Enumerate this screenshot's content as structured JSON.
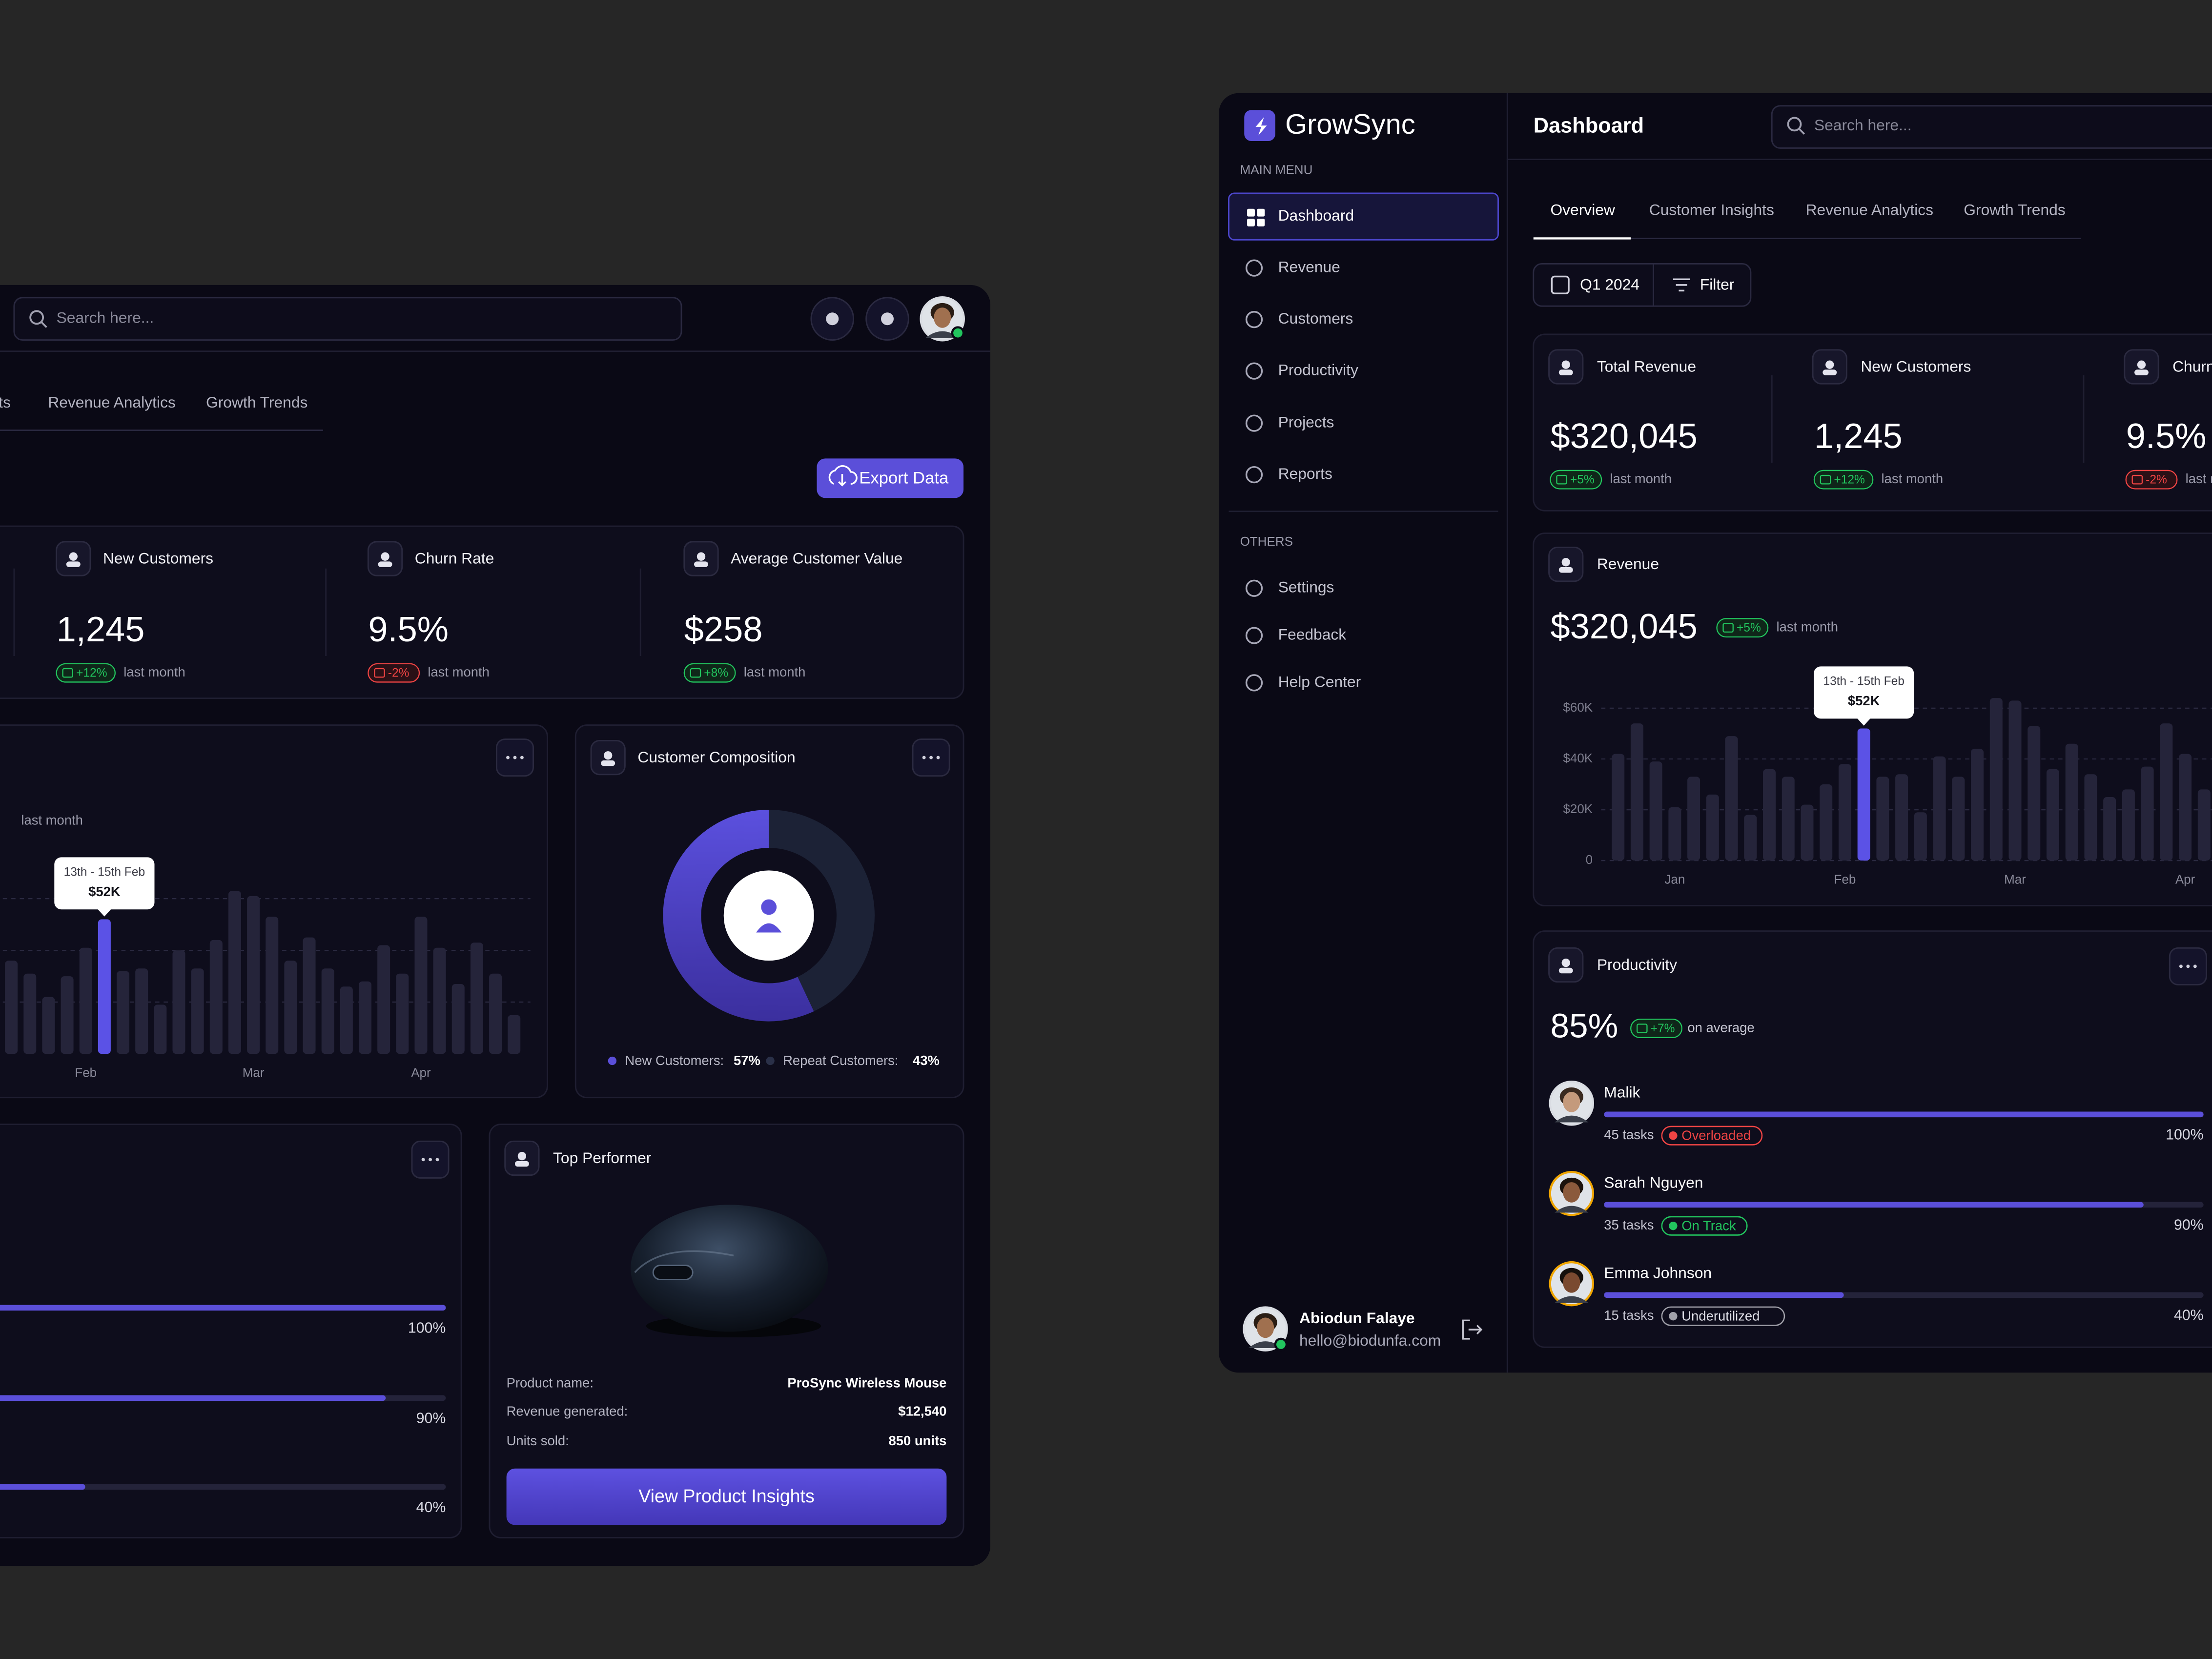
{
  "left_panel": {
    "search_placeholder": "Search here...",
    "tabs": [
      "ts",
      "Revenue Analytics",
      "Growth Trends"
    ],
    "export_button": "Export Data",
    "stats": [
      {
        "label": "New Customers",
        "value": "1,245",
        "change": "+12%",
        "period": "last month"
      },
      {
        "label": "Churn Rate",
        "value": "9.5%",
        "change": "-2%",
        "period": "last month"
      },
      {
        "label": "Average Customer Value",
        "value": "$258",
        "change": "+8%",
        "period": "last month"
      }
    ],
    "revenue_chart": {
      "type": "bar",
      "period": "last month",
      "tooltip": {
        "date": "13th - 15th Feb",
        "value": "$52K"
      },
      "categories": [
        null,
        null,
        null,
        null,
        "Feb",
        null,
        null,
        null,
        null,
        null,
        null,
        null,
        null,
        "Mar",
        null,
        null,
        null,
        null,
        null,
        null,
        null,
        null,
        "Apr",
        null,
        null,
        null,
        null,
        null
      ],
      "values": [
        36000,
        31000,
        22000,
        30000,
        41000,
        52000,
        32000,
        33000,
        19000,
        40000,
        33000,
        44000,
        63000,
        61000,
        53000,
        36000,
        45000,
        33000,
        26000,
        28000,
        42000,
        31000,
        53000,
        41000,
        27000,
        43000,
        31000,
        15000
      ],
      "highlight_index": 5,
      "ylim": [
        0,
        70000
      ],
      "yticks": [
        20000,
        40000,
        60000
      ],
      "grid": true,
      "color": "#25243a",
      "highlight_color": "#5b52e6"
    },
    "customer_composition": {
      "type": "pie",
      "title": "Customer Composition",
      "categories": [
        "New Customers:",
        "Repeat Customers:"
      ],
      "values": [
        57,
        43
      ],
      "value_labels": [
        "57%",
        "43%"
      ],
      "colors": [
        "#5b4fd9",
        "#1c2236"
      ]
    },
    "productivity": {
      "values": [
        100,
        90,
        40
      ],
      "value_labels": [
        "100%",
        "90%",
        "40%"
      ]
    },
    "top_performer": {
      "title": "Top Performer",
      "rows": [
        [
          "Product name:",
          "ProSync Wireless Mouse"
        ],
        [
          "Revenue generated:",
          "$12,540"
        ],
        [
          "Units sold:",
          "850 units"
        ]
      ],
      "button": "View Product Insights"
    }
  },
  "right_panel": {
    "logo": "GrowSync",
    "main_menu_heading": "MAIN MENU",
    "main_menu": [
      "Dashboard",
      "Revenue",
      "Customers",
      "Productivity",
      "Projects",
      "Reports"
    ],
    "others_heading": "OTHERS",
    "others_menu": [
      "Settings",
      "Feedback",
      "Help Center"
    ],
    "user": {
      "name": "Abiodun Falaye",
      "email": "hello@biodunfa.com"
    },
    "page_title": "Dashboard",
    "search_placeholder": "Search here...",
    "tabs": [
      "Overview",
      "Customer Insights",
      "Revenue Analytics",
      "Growth Trends"
    ],
    "period_button": "Q1 2024",
    "filter_button": "Filter",
    "stats": [
      {
        "label": "Total Revenue",
        "value": "$320,045",
        "change": "+5%",
        "period": "last month"
      },
      {
        "label": "New Customers",
        "value": "1,245",
        "change": "+12%",
        "period": "last month"
      },
      {
        "label": "Churn",
        "value": "9.5%",
        "change": "-2%",
        "period": "last month"
      }
    ],
    "revenue_chart": {
      "type": "bar",
      "title": "Revenue",
      "total": "$320,045",
      "change": "+5%",
      "period": "last month",
      "tooltip": {
        "date": "13th - 15th Feb",
        "value": "$52K"
      },
      "categories": [
        null,
        null,
        null,
        "Jan",
        null,
        null,
        null,
        null,
        null,
        null,
        null,
        null,
        "Feb",
        null,
        null,
        null,
        null,
        null,
        null,
        null,
        null,
        "Mar",
        null,
        null,
        null,
        null,
        null,
        null,
        null,
        null,
        "Apr",
        null
      ],
      "values": [
        42000,
        54000,
        39000,
        21000,
        33000,
        26000,
        49000,
        18000,
        36000,
        33000,
        22000,
        30000,
        38000,
        52000,
        33000,
        34000,
        19000,
        41000,
        33000,
        44000,
        64000,
        63000,
        53000,
        36000,
        46000,
        34000,
        25000,
        28000,
        37000,
        54000,
        42000,
        28000
      ],
      "highlight_index": 13,
      "ylim": [
        0,
        70000
      ],
      "yticks": [
        0,
        {
          "value": 20000,
          "label": "$20K"
        },
        {
          "value": 40000,
          "label": "$40K"
        },
        {
          "value": 60000,
          "label": "$60K"
        }
      ],
      "grid": true,
      "color": "#25243a",
      "highlight_color": "#5b52e6"
    },
    "productivity": {
      "title": "Productivity",
      "value": "85%",
      "change": "+7%",
      "period": "on average",
      "members": [
        {
          "name": "Malik",
          "tasks": "45 tasks",
          "status": "Overloaded",
          "status_color": "#ef4444",
          "value": 100,
          "value_label": "100%"
        },
        {
          "name": "Sarah Nguyen",
          "tasks": "35 tasks",
          "status": "On Track",
          "status_color": "#22c55e",
          "value": 90,
          "value_label": "90%"
        },
        {
          "name": "Emma Johnson",
          "tasks": "15 tasks",
          "status": "Underutilized",
          "status_color": "#a1a1aa",
          "value": 40,
          "value_label": "40%"
        }
      ]
    }
  }
}
